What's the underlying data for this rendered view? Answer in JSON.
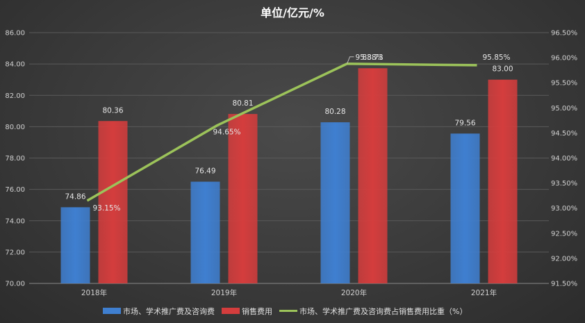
{
  "chart_data": {
    "type": "bar",
    "title": "单位/亿元/%",
    "categories": [
      "2018年",
      "2019年",
      "2020年",
      "2021年"
    ],
    "series": [
      {
        "name": "市场、学术推广费及咨询费",
        "type": "bar",
        "axis": "left",
        "color": "#3f7fd0",
        "values": [
          74.86,
          76.49,
          80.28,
          79.56
        ],
        "labels": [
          "74.86",
          "76.49",
          "80.28",
          "79.56"
        ]
      },
      {
        "name": "销售费用",
        "type": "bar",
        "axis": "left",
        "color": "#d43d3d",
        "values": [
          80.36,
          80.81,
          83.73,
          83.0
        ],
        "labels": [
          "80.36",
          "80.81",
          "83.73",
          "83.00"
        ]
      },
      {
        "name": "市场、学术推广费及咨询费占销售费用比重（%）",
        "type": "line",
        "axis": "right",
        "color": "#9cc35a",
        "values": [
          93.15,
          94.65,
          95.88,
          95.85
        ],
        "labels": [
          "93.15%",
          "94.65%",
          "95.88%",
          "95.85%"
        ]
      }
    ],
    "y_left": {
      "min": 70,
      "max": 86,
      "step": 2,
      "ticks": [
        "70.00",
        "72.00",
        "74.00",
        "76.00",
        "78.00",
        "80.00",
        "82.00",
        "84.00",
        "86.00"
      ]
    },
    "y_right": {
      "min": 91.5,
      "max": 96.5,
      "step": 0.5,
      "ticks": [
        "91.50%",
        "92.00%",
        "92.50%",
        "93.00%",
        "93.50%",
        "94.00%",
        "94.50%",
        "95.00%",
        "95.50%",
        "96.00%",
        "96.50%"
      ]
    },
    "grid": true,
    "legend": "bottom"
  }
}
